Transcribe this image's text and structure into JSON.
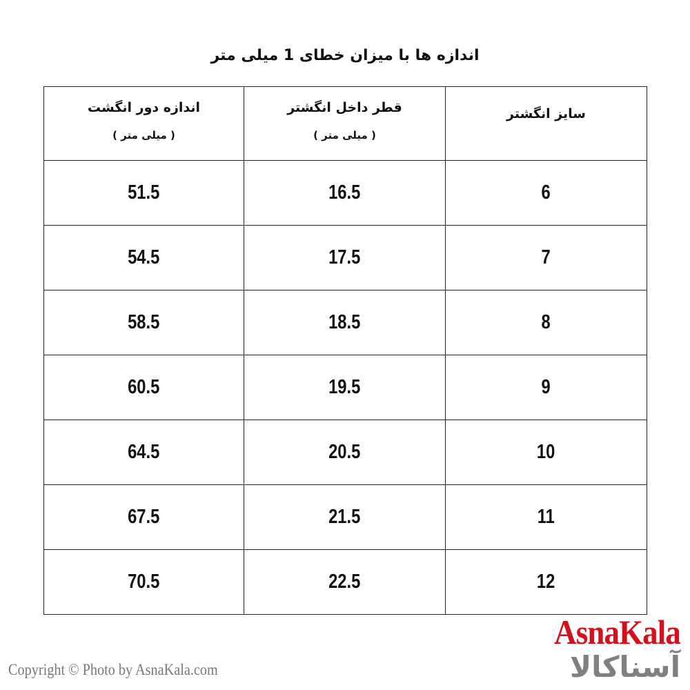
{
  "title": "اندازه ها با میزان خطای 1 میلی متر",
  "table": {
    "headers": [
      {
        "label": "سایز انگشتر",
        "unit": ""
      },
      {
        "label": "قطر داخل انگشتر",
        "unit": "( میلی متر )"
      },
      {
        "label": "اندازه دور انگشت",
        "unit": "( میلی متر )"
      }
    ],
    "rows": [
      [
        "6",
        "16.5",
        "51.5"
      ],
      [
        "7",
        "17.5",
        "54.5"
      ],
      [
        "8",
        "18.5",
        "58.5"
      ],
      [
        "9",
        "19.5",
        "60.5"
      ],
      [
        "10",
        "20.5",
        "64.5"
      ],
      [
        "11",
        "21.5",
        "67.5"
      ],
      [
        "12",
        "22.5",
        "70.5"
      ]
    ]
  },
  "footer": {
    "copyright": "Copyright © Photo by AsnaKala.com"
  },
  "logo": {
    "latin": "AsnaKala",
    "persian": "آسناکالا",
    "brand_color": "#d4101c",
    "secondary_color": "#808080"
  }
}
